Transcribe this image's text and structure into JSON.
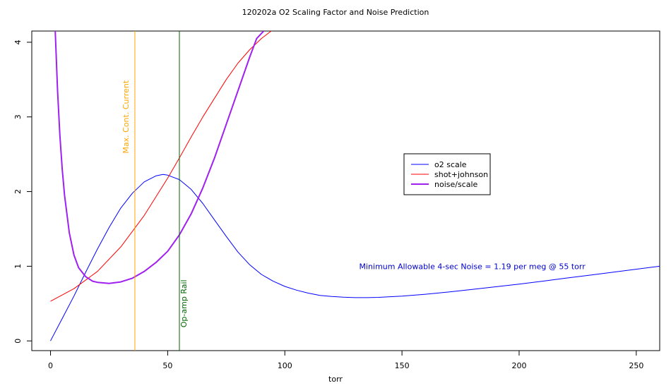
{
  "chart_data": {
    "type": "line",
    "title": "120202a   O2 Scaling Factor and Noise Prediction",
    "xlabel": "torr",
    "ylabel": "",
    "xlim": [
      -8,
      260
    ],
    "ylim": [
      -0.13,
      4.15
    ],
    "x_ticks": [
      0,
      50,
      100,
      150,
      200,
      250
    ],
    "y_ticks": [
      0,
      1,
      2,
      3,
      4
    ],
    "grid": false,
    "legend_position": "center-right",
    "series": [
      {
        "name": "o2 scale",
        "color": "#0000ff",
        "x": [
          0,
          5,
          10,
          15,
          20,
          25,
          30,
          35,
          40,
          45,
          48,
          50,
          55,
          60,
          65,
          70,
          75,
          80,
          85,
          90,
          95,
          100,
          105,
          110,
          115,
          120,
          125,
          130,
          135,
          140,
          150,
          160,
          170,
          180,
          190,
          200,
          210,
          220,
          230,
          240,
          250,
          260
        ],
        "y": [
          0.0,
          0.3,
          0.6,
          0.92,
          1.23,
          1.52,
          1.78,
          1.98,
          2.13,
          2.21,
          2.23,
          2.22,
          2.16,
          2.03,
          1.84,
          1.62,
          1.4,
          1.19,
          1.02,
          0.89,
          0.8,
          0.73,
          0.68,
          0.64,
          0.61,
          0.595,
          0.585,
          0.58,
          0.58,
          0.583,
          0.6,
          0.625,
          0.655,
          0.69,
          0.725,
          0.76,
          0.8,
          0.84,
          0.88,
          0.92,
          0.96,
          1.0
        ]
      },
      {
        "name": "shot+johnson",
        "color": "#ff0000",
        "x": [
          0,
          10,
          20,
          30,
          40,
          50,
          55,
          60,
          65,
          70,
          75,
          80,
          85,
          90,
          95
        ],
        "y": [
          0.53,
          0.7,
          0.93,
          1.26,
          1.68,
          2.18,
          2.45,
          2.73,
          3.0,
          3.25,
          3.5,
          3.72,
          3.9,
          4.05,
          4.17
        ]
      },
      {
        "name": "noise/scale",
        "color": "#a020f0",
        "x": [
          2,
          3,
          4,
          5,
          6,
          8,
          10,
          12,
          15,
          18,
          20,
          25,
          30,
          35,
          40,
          45,
          50,
          55,
          60,
          65,
          70,
          75,
          80,
          85,
          88,
          91
        ],
        "y": [
          4.15,
          3.35,
          2.75,
          2.3,
          1.95,
          1.45,
          1.15,
          0.98,
          0.86,
          0.8,
          0.785,
          0.77,
          0.79,
          0.84,
          0.93,
          1.05,
          1.2,
          1.42,
          1.7,
          2.05,
          2.45,
          2.9,
          3.35,
          3.8,
          4.05,
          4.15
        ]
      }
    ],
    "annotations": [
      {
        "text": "Max. Cont. Current",
        "x": 36,
        "y": 3.0,
        "color": "#ffa500",
        "vertical_line_x": 36
      },
      {
        "text": "Op-amp Rail",
        "x": 55,
        "y": 0.5,
        "color": "#006400",
        "vertical_line_x": 55
      },
      {
        "text": "Minimum Allowable 4-sec Noise =  1.19  per meg @  55  torr",
        "x": 180,
        "y": 1.0,
        "color": "#0000cd"
      }
    ]
  }
}
